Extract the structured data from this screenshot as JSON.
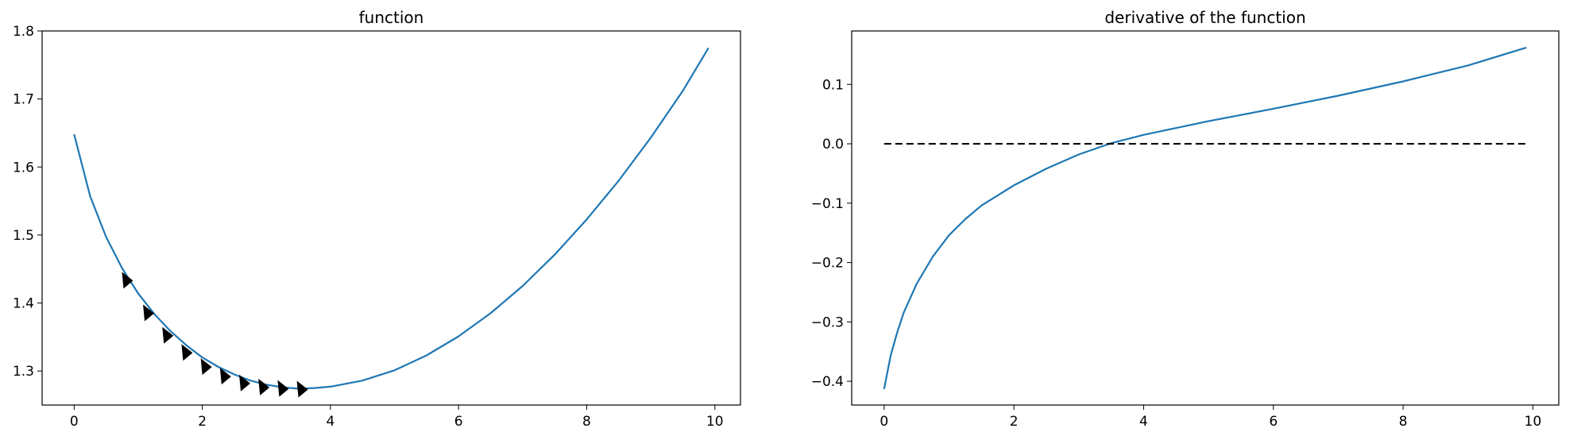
{
  "chart_data": [
    {
      "type": "line",
      "title": "function",
      "xlabel": "",
      "ylabel": "",
      "xlim": [
        -0.5,
        10.4
      ],
      "ylim": [
        1.25,
        1.8
      ],
      "xticks": [
        0,
        2,
        4,
        6,
        8,
        10
      ],
      "yticks": [
        1.3,
        1.4,
        1.5,
        1.6,
        1.7,
        1.8
      ],
      "xtick_labels": [
        "0",
        "2",
        "4",
        "6",
        "8",
        "10"
      ],
      "ytick_labels": [
        "1.3",
        "1.4",
        "1.5",
        "1.6",
        "1.7",
        "1.8"
      ],
      "line_color": "#1f77b4",
      "marker_color": "#000000",
      "series": [
        {
          "kind": "line",
          "x": [
            0,
            0.25,
            0.5,
            0.75,
            1.0,
            1.25,
            1.5,
            1.75,
            2.0,
            2.25,
            2.5,
            2.75,
            3.0,
            3.25,
            3.5,
            3.75,
            4.0,
            4.5,
            5.0,
            5.5,
            6.0,
            6.5,
            7.0,
            7.5,
            8.0,
            8.5,
            9.0,
            9.5,
            9.9
          ],
          "y": [
            1.648,
            1.557,
            1.497,
            1.451,
            1.414,
            1.384,
            1.359,
            1.338,
            1.32,
            1.306,
            1.295,
            1.286,
            1.28,
            1.276,
            1.274,
            1.275,
            1.277,
            1.286,
            1.301,
            1.323,
            1.351,
            1.385,
            1.425,
            1.471,
            1.523,
            1.58,
            1.643,
            1.712,
            1.775
          ]
        },
        {
          "kind": "markers",
          "marker": "triangle-right",
          "x": [
            0.82,
            1.15,
            1.45,
            1.75,
            2.05,
            2.35,
            2.65,
            2.95,
            3.25,
            3.55
          ],
          "y": [
            1.434,
            1.386,
            1.353,
            1.328,
            1.307,
            1.293,
            1.283,
            1.277,
            1.275,
            1.274
          ]
        }
      ]
    },
    {
      "type": "line",
      "title": "derivative of the function",
      "xlabel": "",
      "ylabel": "",
      "xlim": [
        -0.5,
        10.4
      ],
      "ylim": [
        -0.44,
        0.19
      ],
      "xticks": [
        0,
        2,
        4,
        6,
        8,
        10
      ],
      "yticks": [
        -0.4,
        -0.3,
        -0.2,
        -0.1,
        0.0,
        0.1
      ],
      "xtick_labels": [
        "0",
        "2",
        "4",
        "6",
        "8",
        "10"
      ],
      "ytick_labels": [
        "−0.4",
        "−0.3",
        "−0.2",
        "−0.1",
        "0.0",
        "0.1"
      ],
      "line_color": "#1f77b4",
      "dash_color": "#000000",
      "series": [
        {
          "kind": "line",
          "x": [
            0,
            0.1,
            0.2,
            0.3,
            0.5,
            0.75,
            1.0,
            1.25,
            1.5,
            2.0,
            2.5,
            3.0,
            3.5,
            4.0,
            5.0,
            6.0,
            7.0,
            8.0,
            9.0,
            9.9
          ],
          "y": [
            -0.413,
            -0.357,
            -0.318,
            -0.285,
            -0.236,
            -0.19,
            -0.154,
            -0.127,
            -0.104,
            -0.07,
            -0.042,
            -0.018,
            0.001,
            0.015,
            0.038,
            0.059,
            0.081,
            0.105,
            0.132,
            0.162
          ]
        },
        {
          "kind": "dashed",
          "x": [
            0,
            9.9
          ],
          "y": [
            0.0,
            0.0
          ]
        }
      ]
    }
  ]
}
